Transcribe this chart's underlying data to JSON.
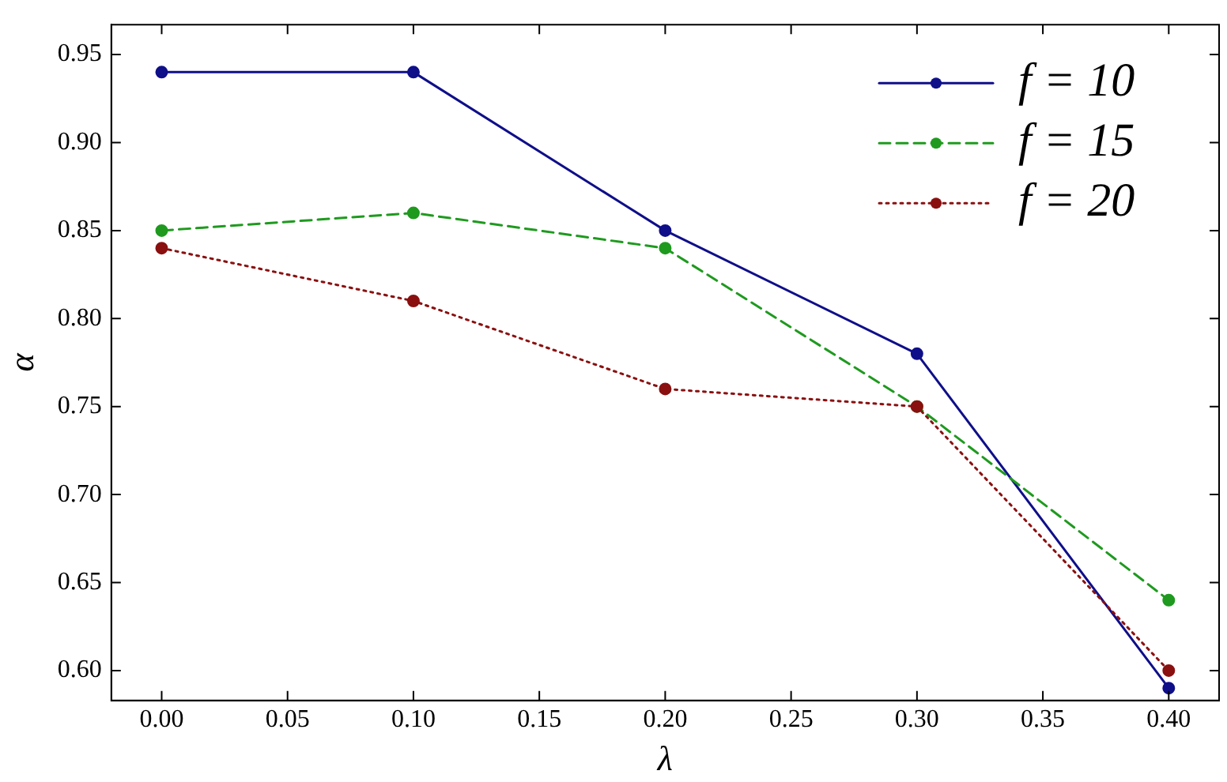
{
  "chart_data": {
    "type": "line",
    "xlabel": "λ",
    "ylabel": "α",
    "x": [
      0.0,
      0.1,
      0.2,
      0.3,
      0.4
    ],
    "xlim": [
      -0.02,
      0.42
    ],
    "xticks": [
      {
        "value": 0,
        "label": "0.00"
      },
      0.05,
      {
        "value": 0.1,
        "label": "0.10"
      },
      0.15,
      {
        "value": 0.2,
        "label": "0.20"
      },
      0.25,
      {
        "value": 0.3,
        "label": "0.30"
      },
      0.35,
      {
        "value": 0.4,
        "label": "0.40"
      }
    ],
    "ylim": [
      0.583,
      0.967
    ],
    "yticks": [
      {
        "value": 0.6,
        "label": "0.60"
      },
      0.65,
      {
        "value": 0.7,
        "label": "0.70"
      },
      0.75,
      {
        "value": 0.8,
        "label": "0.80"
      },
      0.85,
      {
        "value": 0.9,
        "label": "0.90"
      },
      0.95
    ],
    "grid": false,
    "legend": "top right",
    "marker": "circle",
    "series": [
      {
        "name": "f = 10",
        "color": "#0f0f8a",
        "line_style": "solid",
        "values": [
          0.94,
          0.94,
          0.85,
          0.78,
          0.59
        ]
      },
      {
        "name": "f = 15",
        "color": "#1f9a1f",
        "line_style": "dashed",
        "values": [
          0.85,
          0.86,
          0.84,
          0.75,
          0.64
        ]
      },
      {
        "name": "f = 20",
        "color": "#8a1010",
        "line_style": "dotted",
        "values": [
          0.84,
          0.81,
          0.76,
          0.75,
          0.6
        ]
      }
    ]
  }
}
